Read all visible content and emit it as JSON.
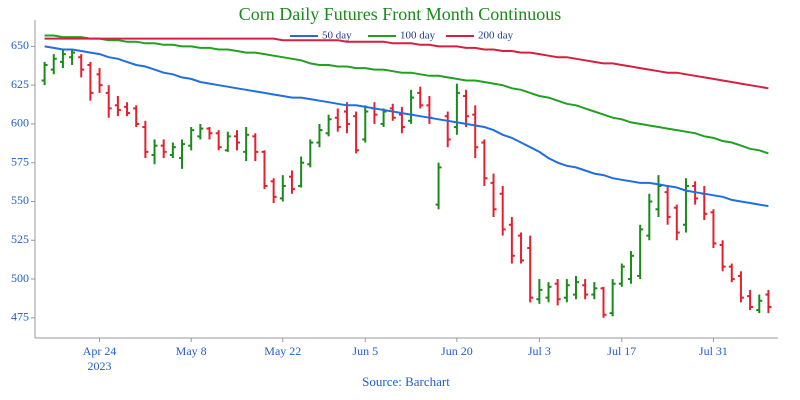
{
  "chart_data": {
    "type": "ohlc",
    "title": "Corn Daily Futures Front Month Continuous",
    "source": "Source: Barchart",
    "x_year_label": "2023",
    "categories": [
      null,
      null,
      null,
      null,
      null,
      null,
      "Apr 24",
      null,
      null,
      null,
      null,
      null,
      null,
      null,
      null,
      null,
      "May 8",
      null,
      null,
      null,
      null,
      null,
      null,
      null,
      null,
      null,
      "May 22",
      null,
      null,
      null,
      null,
      null,
      null,
      null,
      null,
      "Jun 5",
      null,
      null,
      null,
      null,
      null,
      null,
      null,
      null,
      null,
      "Jun 20",
      null,
      null,
      null,
      null,
      null,
      null,
      null,
      null,
      "Jul 3",
      null,
      null,
      null,
      null,
      null,
      null,
      null,
      null,
      "Jul 17",
      null,
      null,
      null,
      null,
      null,
      null,
      null,
      null,
      null,
      "Jul 31",
      null,
      null,
      null,
      null,
      null,
      null
    ],
    "open": [
      628,
      635,
      640,
      643,
      643,
      638,
      632,
      620,
      612,
      611,
      610,
      598,
      580,
      586,
      580,
      578,
      586,
      592,
      597,
      594,
      583,
      592,
      582,
      592,
      582,
      563,
      552,
      566,
      560,
      574,
      588,
      594,
      604,
      608,
      605,
      590,
      610,
      600,
      610,
      606,
      602,
      620,
      612,
      548,
      605,
      598,
      618,
      606,
      588,
      562,
      555,
      535,
      528,
      520,
      487,
      488,
      497,
      488,
      490,
      496,
      490,
      494,
      478,
      497,
      500,
      502,
      528,
      545,
      556,
      546,
      535,
      560,
      555,
      543,
      522,
      508,
      502,
      489,
      480,
      490
    ],
    "high": [
      640,
      645,
      648,
      648,
      645,
      640,
      636,
      625,
      618,
      614,
      612,
      602,
      590,
      590,
      588,
      590,
      598,
      600,
      598,
      596,
      595,
      596,
      598,
      594,
      583,
      565,
      567,
      570,
      579,
      590,
      600,
      606,
      610,
      614,
      608,
      612,
      614,
      610,
      613,
      611,
      622,
      624,
      618,
      575,
      608,
      626,
      622,
      612,
      590,
      568,
      560,
      540,
      530,
      528,
      500,
      498,
      500,
      500,
      502,
      500,
      498,
      495,
      500,
      510,
      518,
      535,
      555,
      567,
      560,
      548,
      565,
      563,
      560,
      545,
      525,
      510,
      505,
      493,
      490,
      493
    ],
    "low": [
      625,
      632,
      636,
      638,
      630,
      615,
      620,
      604,
      605,
      605,
      598,
      578,
      574,
      578,
      578,
      571,
      583,
      590,
      590,
      583,
      582,
      583,
      576,
      576,
      558,
      549,
      550,
      555,
      559,
      572,
      585,
      592,
      595,
      594,
      581,
      588,
      600,
      598,
      602,
      594,
      600,
      610,
      600,
      545,
      585,
      593,
      598,
      578,
      560,
      540,
      528,
      510,
      510,
      485,
      484,
      485,
      483,
      485,
      487,
      487,
      487,
      475,
      476,
      495,
      497,
      500,
      525,
      540,
      535,
      525,
      530,
      548,
      538,
      520,
      505,
      498,
      485,
      480,
      478,
      478
    ],
    "close": [
      638,
      642,
      645,
      646,
      635,
      620,
      625,
      610,
      609,
      607,
      600,
      582,
      586,
      582,
      585,
      587,
      596,
      597,
      594,
      585,
      592,
      588,
      593,
      582,
      560,
      553,
      560,
      558,
      575,
      588,
      596,
      603,
      598,
      600,
      583,
      608,
      606,
      608,
      604,
      598,
      617,
      612,
      604,
      572,
      590,
      620,
      605,
      585,
      565,
      545,
      532,
      515,
      512,
      488,
      493,
      495,
      487,
      496,
      498,
      490,
      494,
      477,
      497,
      508,
      515,
      532,
      550,
      560,
      540,
      530,
      560,
      552,
      542,
      523,
      508,
      500,
      488,
      482,
      486,
      482
    ],
    "up_color": "#1a8a1a",
    "down_color": "#e3202e",
    "series": [
      {
        "name": "50 day",
        "color": "#1f6fe0",
        "values": [
          650,
          649,
          648,
          648,
          647,
          646,
          645,
          643,
          642,
          640,
          638,
          637,
          635,
          633,
          632,
          630,
          629,
          627,
          626,
          625,
          624,
          623,
          622,
          621,
          620,
          619,
          618,
          617,
          617,
          616,
          615,
          614,
          613,
          612,
          612,
          611,
          610,
          609,
          608,
          607,
          606,
          605,
          604,
          603,
          602,
          601,
          600,
          599,
          598,
          596,
          593,
          591,
          588,
          585,
          582,
          578,
          575,
          573,
          572,
          570,
          568,
          567,
          565,
          564,
          563,
          562,
          562,
          561,
          560,
          559,
          557,
          556,
          555,
          554,
          553,
          551,
          550,
          549,
          548,
          547
        ]
      },
      {
        "name": "100 day",
        "color": "#22a022",
        "values": [
          657,
          657,
          656,
          656,
          656,
          655,
          655,
          654,
          654,
          653,
          653,
          652,
          652,
          651,
          651,
          650,
          650,
          649,
          649,
          648,
          648,
          647,
          646,
          646,
          645,
          644,
          643,
          642,
          641,
          639,
          638,
          638,
          637,
          637,
          636,
          636,
          635,
          635,
          634,
          633,
          633,
          632,
          631,
          631,
          630,
          629,
          628,
          628,
          627,
          626,
          625,
          623,
          622,
          620,
          618,
          617,
          615,
          613,
          612,
          610,
          608,
          606,
          604,
          603,
          601,
          600,
          599,
          598,
          597,
          596,
          595,
          594,
          592,
          591,
          589,
          588,
          586,
          584,
          583,
          581
        ]
      },
      {
        "name": "200 day",
        "color": "#d62040",
        "values": [
          655,
          655,
          655,
          655,
          655,
          655,
          655,
          655,
          655,
          655,
          655,
          655,
          655,
          655,
          655,
          655,
          655,
          655,
          655,
          655,
          655,
          655,
          655,
          655,
          655,
          655,
          654,
          654,
          654,
          654,
          654,
          654,
          654,
          653,
          653,
          653,
          653,
          653,
          652,
          652,
          652,
          651,
          651,
          650,
          650,
          650,
          649,
          649,
          648,
          648,
          647,
          647,
          646,
          646,
          645,
          644,
          643,
          643,
          642,
          641,
          640,
          639,
          639,
          638,
          637,
          636,
          635,
          634,
          633,
          633,
          632,
          631,
          630,
          629,
          628,
          627,
          626,
          625,
          624,
          623
        ]
      }
    ],
    "ylim": [
      462,
      667
    ],
    "yticks": [
      475,
      500,
      525,
      550,
      575,
      600,
      625,
      650
    ]
  }
}
